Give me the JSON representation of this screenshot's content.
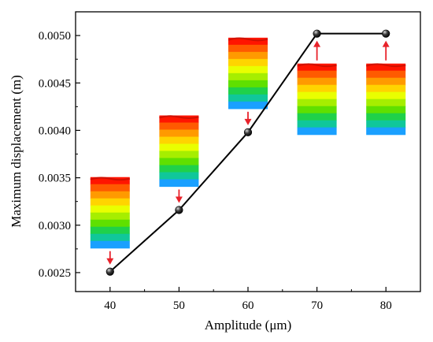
{
  "chart_data": {
    "type": "line",
    "title": "",
    "xlabel": "Amplitude (μm)",
    "ylabel": "Maximum displacement (m)",
    "xlim": [
      35,
      85
    ],
    "ylim": [
      0.0023,
      0.00525
    ],
    "x_ticks": [
      "40",
      "50",
      "60",
      "70",
      "80"
    ],
    "y_ticks": [
      "0.0025",
      "0.0030",
      "0.0035",
      "0.0040",
      "0.0045",
      "0.0050"
    ],
    "grid": false,
    "legend": "none",
    "series": [
      {
        "x": [
          40,
          50,
          60,
          70,
          80
        ],
        "y": [
          0.00251,
          0.00316,
          0.00398,
          0.00502,
          0.00502
        ],
        "color": "#000000",
        "marker": "sphere"
      }
    ],
    "annotations": [
      {
        "x": 40,
        "type": "displacement-contour-inset",
        "arrow": "down",
        "arrow_color": "#e8222a"
      },
      {
        "x": 50,
        "type": "displacement-contour-inset",
        "arrow": "down",
        "arrow_color": "#e8222a"
      },
      {
        "x": 60,
        "type": "displacement-contour-inset",
        "arrow": "down",
        "arrow_color": "#e8222a"
      },
      {
        "x": 70,
        "type": "displacement-contour-inset",
        "arrow": "up",
        "arrow_color": "#e8222a"
      },
      {
        "x": 80,
        "type": "displacement-contour-inset",
        "arrow": "up",
        "arrow_color": "#e8222a"
      }
    ],
    "colormap": [
      "#ff1500",
      "#ff5a00",
      "#ff9a00",
      "#ffd400",
      "#e9ff00",
      "#a6ee00",
      "#5fe000",
      "#1fd14a",
      "#10c79a",
      "#1aa0ff"
    ]
  }
}
